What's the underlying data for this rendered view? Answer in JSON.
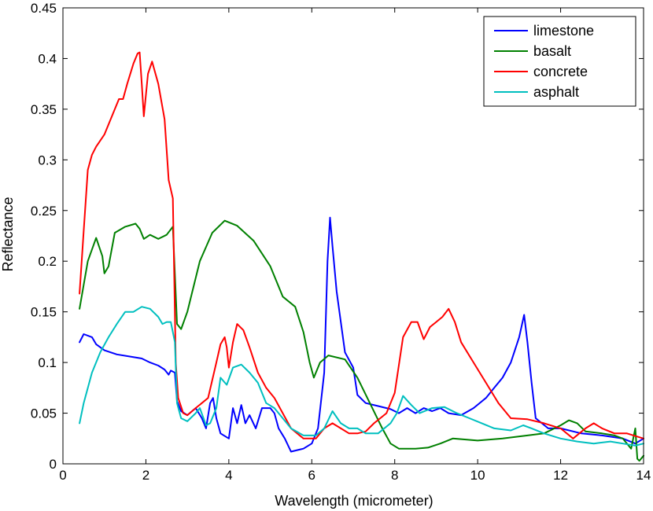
{
  "chart_data": {
    "type": "line",
    "title": "",
    "xlabel": "Wavelength (micrometer)",
    "ylabel": "Reflectance",
    "xlim": [
      0,
      14
    ],
    "ylim": [
      0,
      0.45
    ],
    "xticks": [
      0,
      2,
      4,
      6,
      8,
      10,
      12,
      14
    ],
    "xtick_labels": [
      "0",
      "2",
      "4",
      "6",
      "8",
      "10",
      "12",
      "14"
    ],
    "yticks": [
      0,
      0.05,
      0.1,
      0.15,
      0.2,
      0.25,
      0.3,
      0.35,
      0.4,
      0.45
    ],
    "ytick_labels": [
      "0",
      "0.05",
      "0.1",
      "0.15",
      "0.2",
      "0.25",
      "0.3",
      "0.35",
      "0.4",
      "0.45"
    ],
    "grid": false,
    "legend_position": "top-right",
    "series": [
      {
        "name": "limestone",
        "color": "#0000ff",
        "points": [
          [
            0.4,
            0.12
          ],
          [
            0.5,
            0.128
          ],
          [
            0.7,
            0.125
          ],
          [
            0.8,
            0.118
          ],
          [
            1.0,
            0.112
          ],
          [
            1.3,
            0.108
          ],
          [
            1.6,
            0.106
          ],
          [
            1.9,
            0.104
          ],
          [
            2.1,
            0.1
          ],
          [
            2.3,
            0.097
          ],
          [
            2.45,
            0.093
          ],
          [
            2.55,
            0.088
          ],
          [
            2.6,
            0.092
          ],
          [
            2.7,
            0.09
          ],
          [
            2.75,
            0.062
          ],
          [
            2.85,
            0.052
          ],
          [
            3.0,
            0.048
          ],
          [
            3.2,
            0.055
          ],
          [
            3.35,
            0.045
          ],
          [
            3.45,
            0.035
          ],
          [
            3.55,
            0.06
          ],
          [
            3.62,
            0.065
          ],
          [
            3.7,
            0.045
          ],
          [
            3.8,
            0.03
          ],
          [
            4.0,
            0.025
          ],
          [
            4.1,
            0.055
          ],
          [
            4.2,
            0.04
          ],
          [
            4.3,
            0.058
          ],
          [
            4.4,
            0.04
          ],
          [
            4.5,
            0.048
          ],
          [
            4.65,
            0.035
          ],
          [
            4.8,
            0.055
          ],
          [
            5.0,
            0.055
          ],
          [
            5.1,
            0.05
          ],
          [
            5.2,
            0.035
          ],
          [
            5.35,
            0.025
          ],
          [
            5.5,
            0.012
          ],
          [
            5.8,
            0.015
          ],
          [
            6.0,
            0.02
          ],
          [
            6.15,
            0.035
          ],
          [
            6.3,
            0.09
          ],
          [
            6.38,
            0.2
          ],
          [
            6.44,
            0.243
          ],
          [
            6.5,
            0.215
          ],
          [
            6.6,
            0.17
          ],
          [
            6.8,
            0.11
          ],
          [
            7.0,
            0.095
          ],
          [
            7.1,
            0.068
          ],
          [
            7.3,
            0.06
          ],
          [
            7.6,
            0.057
          ],
          [
            7.9,
            0.054
          ],
          [
            8.1,
            0.05
          ],
          [
            8.3,
            0.055
          ],
          [
            8.5,
            0.05
          ],
          [
            8.7,
            0.055
          ],
          [
            8.9,
            0.052
          ],
          [
            9.1,
            0.055
          ],
          [
            9.3,
            0.05
          ],
          [
            9.6,
            0.048
          ],
          [
            9.9,
            0.055
          ],
          [
            10.2,
            0.065
          ],
          [
            10.4,
            0.075
          ],
          [
            10.6,
            0.085
          ],
          [
            10.8,
            0.1
          ],
          [
            11.0,
            0.125
          ],
          [
            11.12,
            0.147
          ],
          [
            11.2,
            0.12
          ],
          [
            11.3,
            0.08
          ],
          [
            11.4,
            0.045
          ],
          [
            11.7,
            0.035
          ],
          [
            12.0,
            0.035
          ],
          [
            12.5,
            0.03
          ],
          [
            13.0,
            0.028
          ],
          [
            13.5,
            0.025
          ],
          [
            13.8,
            0.02
          ],
          [
            14.0,
            0.025
          ]
        ]
      },
      {
        "name": "basalt",
        "color": "#008000",
        "points": [
          [
            0.4,
            0.153
          ],
          [
            0.6,
            0.2
          ],
          [
            0.8,
            0.223
          ],
          [
            0.95,
            0.205
          ],
          [
            1.0,
            0.188
          ],
          [
            1.1,
            0.195
          ],
          [
            1.25,
            0.228
          ],
          [
            1.5,
            0.234
          ],
          [
            1.75,
            0.237
          ],
          [
            1.85,
            0.232
          ],
          [
            1.95,
            0.222
          ],
          [
            2.1,
            0.226
          ],
          [
            2.3,
            0.222
          ],
          [
            2.5,
            0.226
          ],
          [
            2.65,
            0.234
          ],
          [
            2.75,
            0.138
          ],
          [
            2.85,
            0.133
          ],
          [
            3.0,
            0.15
          ],
          [
            3.3,
            0.2
          ],
          [
            3.6,
            0.228
          ],
          [
            3.9,
            0.24
          ],
          [
            4.2,
            0.235
          ],
          [
            4.6,
            0.22
          ],
          [
            5.0,
            0.195
          ],
          [
            5.3,
            0.165
          ],
          [
            5.6,
            0.155
          ],
          [
            5.8,
            0.13
          ],
          [
            5.95,
            0.1
          ],
          [
            6.05,
            0.085
          ],
          [
            6.2,
            0.1
          ],
          [
            6.4,
            0.107
          ],
          [
            6.8,
            0.103
          ],
          [
            7.1,
            0.085
          ],
          [
            7.4,
            0.06
          ],
          [
            7.7,
            0.035
          ],
          [
            7.9,
            0.02
          ],
          [
            8.1,
            0.015
          ],
          [
            8.5,
            0.015
          ],
          [
            8.8,
            0.016
          ],
          [
            9.1,
            0.02
          ],
          [
            9.4,
            0.025
          ],
          [
            10.0,
            0.023
          ],
          [
            10.6,
            0.025
          ],
          [
            11.2,
            0.028
          ],
          [
            11.6,
            0.03
          ],
          [
            12.0,
            0.038
          ],
          [
            12.2,
            0.043
          ],
          [
            12.4,
            0.04
          ],
          [
            12.6,
            0.032
          ],
          [
            13.0,
            0.03
          ],
          [
            13.3,
            0.028
          ],
          [
            13.5,
            0.025
          ],
          [
            13.7,
            0.015
          ],
          [
            13.8,
            0.035
          ],
          [
            13.85,
            0.005
          ],
          [
            13.9,
            0.003
          ],
          [
            14.0,
            0.008
          ]
        ]
      },
      {
        "name": "concrete",
        "color": "#ff0000",
        "points": [
          [
            0.4,
            0.168
          ],
          [
            0.5,
            0.23
          ],
          [
            0.6,
            0.29
          ],
          [
            0.7,
            0.305
          ],
          [
            0.8,
            0.313
          ],
          [
            1.0,
            0.325
          ],
          [
            1.2,
            0.345
          ],
          [
            1.35,
            0.36
          ],
          [
            1.45,
            0.36
          ],
          [
            1.55,
            0.375
          ],
          [
            1.7,
            0.395
          ],
          [
            1.8,
            0.405
          ],
          [
            1.85,
            0.406
          ],
          [
            1.9,
            0.375
          ],
          [
            1.95,
            0.343
          ],
          [
            2.05,
            0.385
          ],
          [
            2.15,
            0.397
          ],
          [
            2.3,
            0.375
          ],
          [
            2.45,
            0.34
          ],
          [
            2.55,
            0.28
          ],
          [
            2.65,
            0.262
          ],
          [
            2.72,
            0.1
          ],
          [
            2.78,
            0.065
          ],
          [
            2.9,
            0.05
          ],
          [
            3.0,
            0.048
          ],
          [
            3.2,
            0.055
          ],
          [
            3.35,
            0.06
          ],
          [
            3.5,
            0.065
          ],
          [
            3.7,
            0.1
          ],
          [
            3.8,
            0.118
          ],
          [
            3.9,
            0.125
          ],
          [
            3.95,
            0.115
          ],
          [
            4.0,
            0.095
          ],
          [
            4.1,
            0.12
          ],
          [
            4.2,
            0.138
          ],
          [
            4.35,
            0.132
          ],
          [
            4.5,
            0.115
          ],
          [
            4.7,
            0.09
          ],
          [
            4.9,
            0.075
          ],
          [
            5.1,
            0.065
          ],
          [
            5.3,
            0.05
          ],
          [
            5.5,
            0.035
          ],
          [
            5.8,
            0.025
          ],
          [
            6.1,
            0.025
          ],
          [
            6.3,
            0.035
          ],
          [
            6.5,
            0.04
          ],
          [
            6.7,
            0.035
          ],
          [
            6.9,
            0.03
          ],
          [
            7.1,
            0.03
          ],
          [
            7.3,
            0.032
          ],
          [
            7.5,
            0.04
          ],
          [
            7.8,
            0.05
          ],
          [
            8.0,
            0.07
          ],
          [
            8.2,
            0.125
          ],
          [
            8.4,
            0.14
          ],
          [
            8.55,
            0.14
          ],
          [
            8.7,
            0.123
          ],
          [
            8.85,
            0.135
          ],
          [
            9.0,
            0.14
          ],
          [
            9.15,
            0.145
          ],
          [
            9.3,
            0.153
          ],
          [
            9.45,
            0.14
          ],
          [
            9.6,
            0.12
          ],
          [
            9.9,
            0.1
          ],
          [
            10.2,
            0.08
          ],
          [
            10.5,
            0.06
          ],
          [
            10.8,
            0.045
          ],
          [
            11.2,
            0.044
          ],
          [
            11.6,
            0.04
          ],
          [
            12.0,
            0.035
          ],
          [
            12.3,
            0.025
          ],
          [
            12.6,
            0.035
          ],
          [
            12.8,
            0.04
          ],
          [
            13.0,
            0.035
          ],
          [
            13.3,
            0.03
          ],
          [
            13.6,
            0.03
          ],
          [
            14.0,
            0.025
          ]
        ]
      },
      {
        "name": "asphalt",
        "color": "#00bfbf",
        "points": [
          [
            0.4,
            0.04
          ],
          [
            0.5,
            0.06
          ],
          [
            0.7,
            0.09
          ],
          [
            0.9,
            0.11
          ],
          [
            1.1,
            0.125
          ],
          [
            1.3,
            0.138
          ],
          [
            1.5,
            0.15
          ],
          [
            1.7,
            0.15
          ],
          [
            1.9,
            0.155
          ],
          [
            2.1,
            0.153
          ],
          [
            2.3,
            0.145
          ],
          [
            2.4,
            0.138
          ],
          [
            2.5,
            0.14
          ],
          [
            2.6,
            0.14
          ],
          [
            2.7,
            0.12
          ],
          [
            2.75,
            0.06
          ],
          [
            2.85,
            0.045
          ],
          [
            3.0,
            0.042
          ],
          [
            3.2,
            0.05
          ],
          [
            3.3,
            0.055
          ],
          [
            3.45,
            0.038
          ],
          [
            3.55,
            0.04
          ],
          [
            3.7,
            0.055
          ],
          [
            3.8,
            0.085
          ],
          [
            3.95,
            0.078
          ],
          [
            4.1,
            0.095
          ],
          [
            4.3,
            0.098
          ],
          [
            4.5,
            0.09
          ],
          [
            4.7,
            0.08
          ],
          [
            4.9,
            0.06
          ],
          [
            5.1,
            0.055
          ],
          [
            5.3,
            0.045
          ],
          [
            5.5,
            0.035
          ],
          [
            5.8,
            0.028
          ],
          [
            6.1,
            0.028
          ],
          [
            6.3,
            0.035
          ],
          [
            6.5,
            0.052
          ],
          [
            6.7,
            0.04
          ],
          [
            6.9,
            0.035
          ],
          [
            7.1,
            0.035
          ],
          [
            7.3,
            0.03
          ],
          [
            7.6,
            0.03
          ],
          [
            7.9,
            0.04
          ],
          [
            8.05,
            0.05
          ],
          [
            8.2,
            0.067
          ],
          [
            8.4,
            0.058
          ],
          [
            8.6,
            0.05
          ],
          [
            8.9,
            0.055
          ],
          [
            9.2,
            0.056
          ],
          [
            9.5,
            0.05
          ],
          [
            9.8,
            0.045
          ],
          [
            10.1,
            0.04
          ],
          [
            10.4,
            0.035
          ],
          [
            10.8,
            0.033
          ],
          [
            11.1,
            0.038
          ],
          [
            11.3,
            0.035
          ],
          [
            11.6,
            0.03
          ],
          [
            12.0,
            0.025
          ],
          [
            12.4,
            0.022
          ],
          [
            12.8,
            0.02
          ],
          [
            13.2,
            0.022
          ],
          [
            13.5,
            0.02
          ],
          [
            13.8,
            0.018
          ],
          [
            14.0,
            0.02
          ]
        ]
      }
    ]
  }
}
